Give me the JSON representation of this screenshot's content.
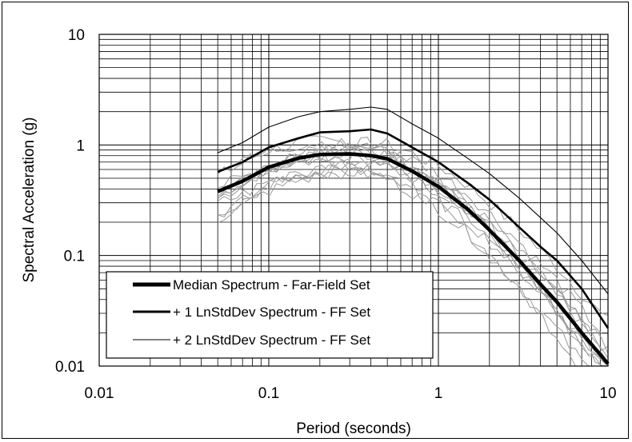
{
  "chart_data": {
    "type": "line",
    "xscale": "log",
    "yscale": "log",
    "xlim": [
      0.01,
      10
    ],
    "ylim": [
      0.01,
      10
    ],
    "xlabel": "Period (seconds)",
    "ylabel": "Spectral Acceleration (g)",
    "xticks": [
      0.01,
      0.1,
      1,
      10
    ],
    "xtick_labels": [
      "0.01",
      "0.1",
      "1",
      "10"
    ],
    "yticks": [
      0.01,
      0.1,
      1,
      10
    ],
    "ytick_labels": [
      "0.01",
      "0.1",
      "1",
      "10"
    ],
    "grid": "major and minor",
    "legend_position": "bottom-left",
    "x": [
      0.05,
      0.07,
      0.1,
      0.15,
      0.2,
      0.3,
      0.4,
      0.5,
      0.7,
      1,
      1.5,
      2,
      3,
      4,
      5,
      7,
      10
    ],
    "series": [
      {
        "name": "Median Spectrum - Far-Field Set",
        "style": "thick",
        "color": "#000000",
        "values": [
          0.38,
          0.47,
          0.63,
          0.76,
          0.82,
          0.83,
          0.8,
          0.75,
          0.58,
          0.42,
          0.26,
          0.17,
          0.09,
          0.055,
          0.038,
          0.02,
          0.0105
        ]
      },
      {
        "name": "+ 1 LnStdDev Spectrum - FF Set",
        "style": "medium",
        "color": "#000000",
        "values": [
          0.57,
          0.7,
          0.95,
          1.15,
          1.3,
          1.33,
          1.38,
          1.27,
          0.95,
          0.7,
          0.45,
          0.32,
          0.18,
          0.12,
          0.09,
          0.05,
          0.022
        ]
      },
      {
        "name": "+ 2 LnStdDev Spectrum - FF Set",
        "style": "thin",
        "color": "#000000",
        "values": [
          0.85,
          1.05,
          1.45,
          1.8,
          2.0,
          2.1,
          2.2,
          2.1,
          1.55,
          1.15,
          0.75,
          0.55,
          0.33,
          0.22,
          0.16,
          0.09,
          0.045
        ]
      }
    ],
    "record_color": "#9a9a9a",
    "record_scales": [
      1.35,
      1.18,
      1.08,
      0.92,
      0.84,
      0.75,
      1.22,
      0.66,
      1.0,
      0.88,
      1.12,
      0.7
    ],
    "record_shapes": [
      0.55,
      -0.35,
      0.15,
      -0.1,
      0.4,
      -0.5,
      0.3,
      -0.2,
      0.05,
      0.45,
      -0.4,
      0.25
    ]
  }
}
